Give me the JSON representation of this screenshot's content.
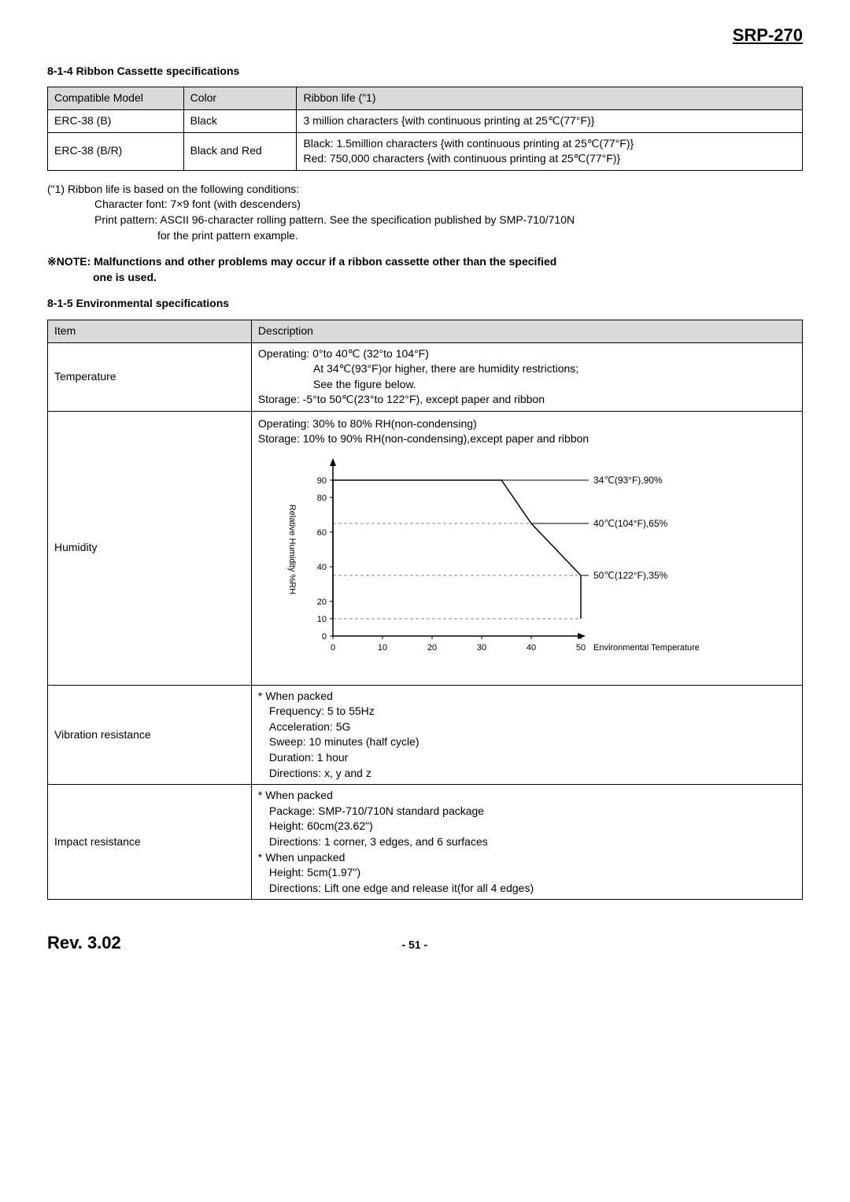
{
  "header": {
    "product": "SRP-270"
  },
  "section_ribbon": {
    "title": "8-1-4 Ribbon Cassette specifications",
    "cols": [
      "Compatible Model",
      "Color",
      "Ribbon life (\"1)"
    ],
    "rows": [
      {
        "model": "ERC-38 (B)",
        "color": "Black",
        "life": "3 million characters {with continuous printing at 25℃(77°F)}"
      },
      {
        "model": "ERC-38 (B/R)",
        "color": "Black and Red",
        "life_black": "Black: 1.5million characters {with continuous printing at 25℃(77°F)}",
        "life_red": "Red: 750,000 characters {with continuous printing at 25℃(77°F)}"
      }
    ],
    "note1_line1": "(\"1) Ribbon life is based on the following conditions:",
    "note1_line2": "Character font: 7×9 font (with descenders)",
    "note1_line3": "Print pattern: ASCII 96-character rolling pattern. See the specification published by SMP-710/710N",
    "note1_line4": "for the print pattern example.",
    "note2_prefix": "※NOTE:",
    "note2_line1": "Malfunctions and other problems may occur if a ribbon cassette other than the specified",
    "note2_line2": "one is used."
  },
  "section_env": {
    "title": "8-1-5 Environmental specifications",
    "cols": [
      "Item",
      "Description"
    ],
    "temp": {
      "label": "Temperature",
      "l1": "Operating: 0°to 40℃ (32°to 104°F)",
      "l2": "At 34℃(93°F)or higher, there are humidity restrictions;",
      "l3": "See the figure below.",
      "l4": "Storage: -5°to 50℃(23°to 122°F), except paper and ribbon"
    },
    "humidity": {
      "label": "Humidity",
      "l1": "Operating: 30% to 80% RH(non-condensing)",
      "l2": "Storage: 10% to 90% RH(non-condensing),except paper and ribbon"
    },
    "chart": {
      "y_label": "Relative Humidity %RH",
      "x_label": "Environmental Temperature",
      "y_ticks": [
        0,
        10,
        20,
        40,
        60,
        80,
        90
      ],
      "x_ticks": [
        0,
        10,
        20,
        30,
        40,
        50
      ],
      "points": [
        {
          "t": 34,
          "rh": 90,
          "label": "34℃(93°F),90%"
        },
        {
          "t": 40,
          "rh": 65,
          "label": "40℃(104°F),65%"
        },
        {
          "t": 50,
          "rh": 35,
          "label": "50℃(122°F),35%"
        }
      ],
      "line_color": "#000000",
      "dash_color": "#808080",
      "axis_color": "#000000",
      "tick_fontsize": 11,
      "label_fontsize": 11,
      "annot_fontsize": 12
    },
    "vibration": {
      "label": "Vibration resistance",
      "l1": "* When packed",
      "l2": "Frequency: 5 to 55Hz",
      "l3": "Acceleration: 5G",
      "l4": "Sweep: 10 minutes (half cycle)",
      "l5": "Duration: 1 hour",
      "l6": "Directions: x, y and z"
    },
    "impact": {
      "label": "Impact resistance",
      "l1": "* When packed",
      "l2": "Package: SMP-710/710N standard package",
      "l3": "Height: 60cm(23.62\")",
      "l4": "Directions: 1 corner, 3 edges, and 6 surfaces",
      "l5": "* When unpacked",
      "l6": "Height: 5cm(1.97\")",
      "l7": "Directions: Lift one edge and release it(for all 4 edges)"
    }
  },
  "footer": {
    "rev": "Rev. 3.02",
    "page": "- 51 -"
  }
}
